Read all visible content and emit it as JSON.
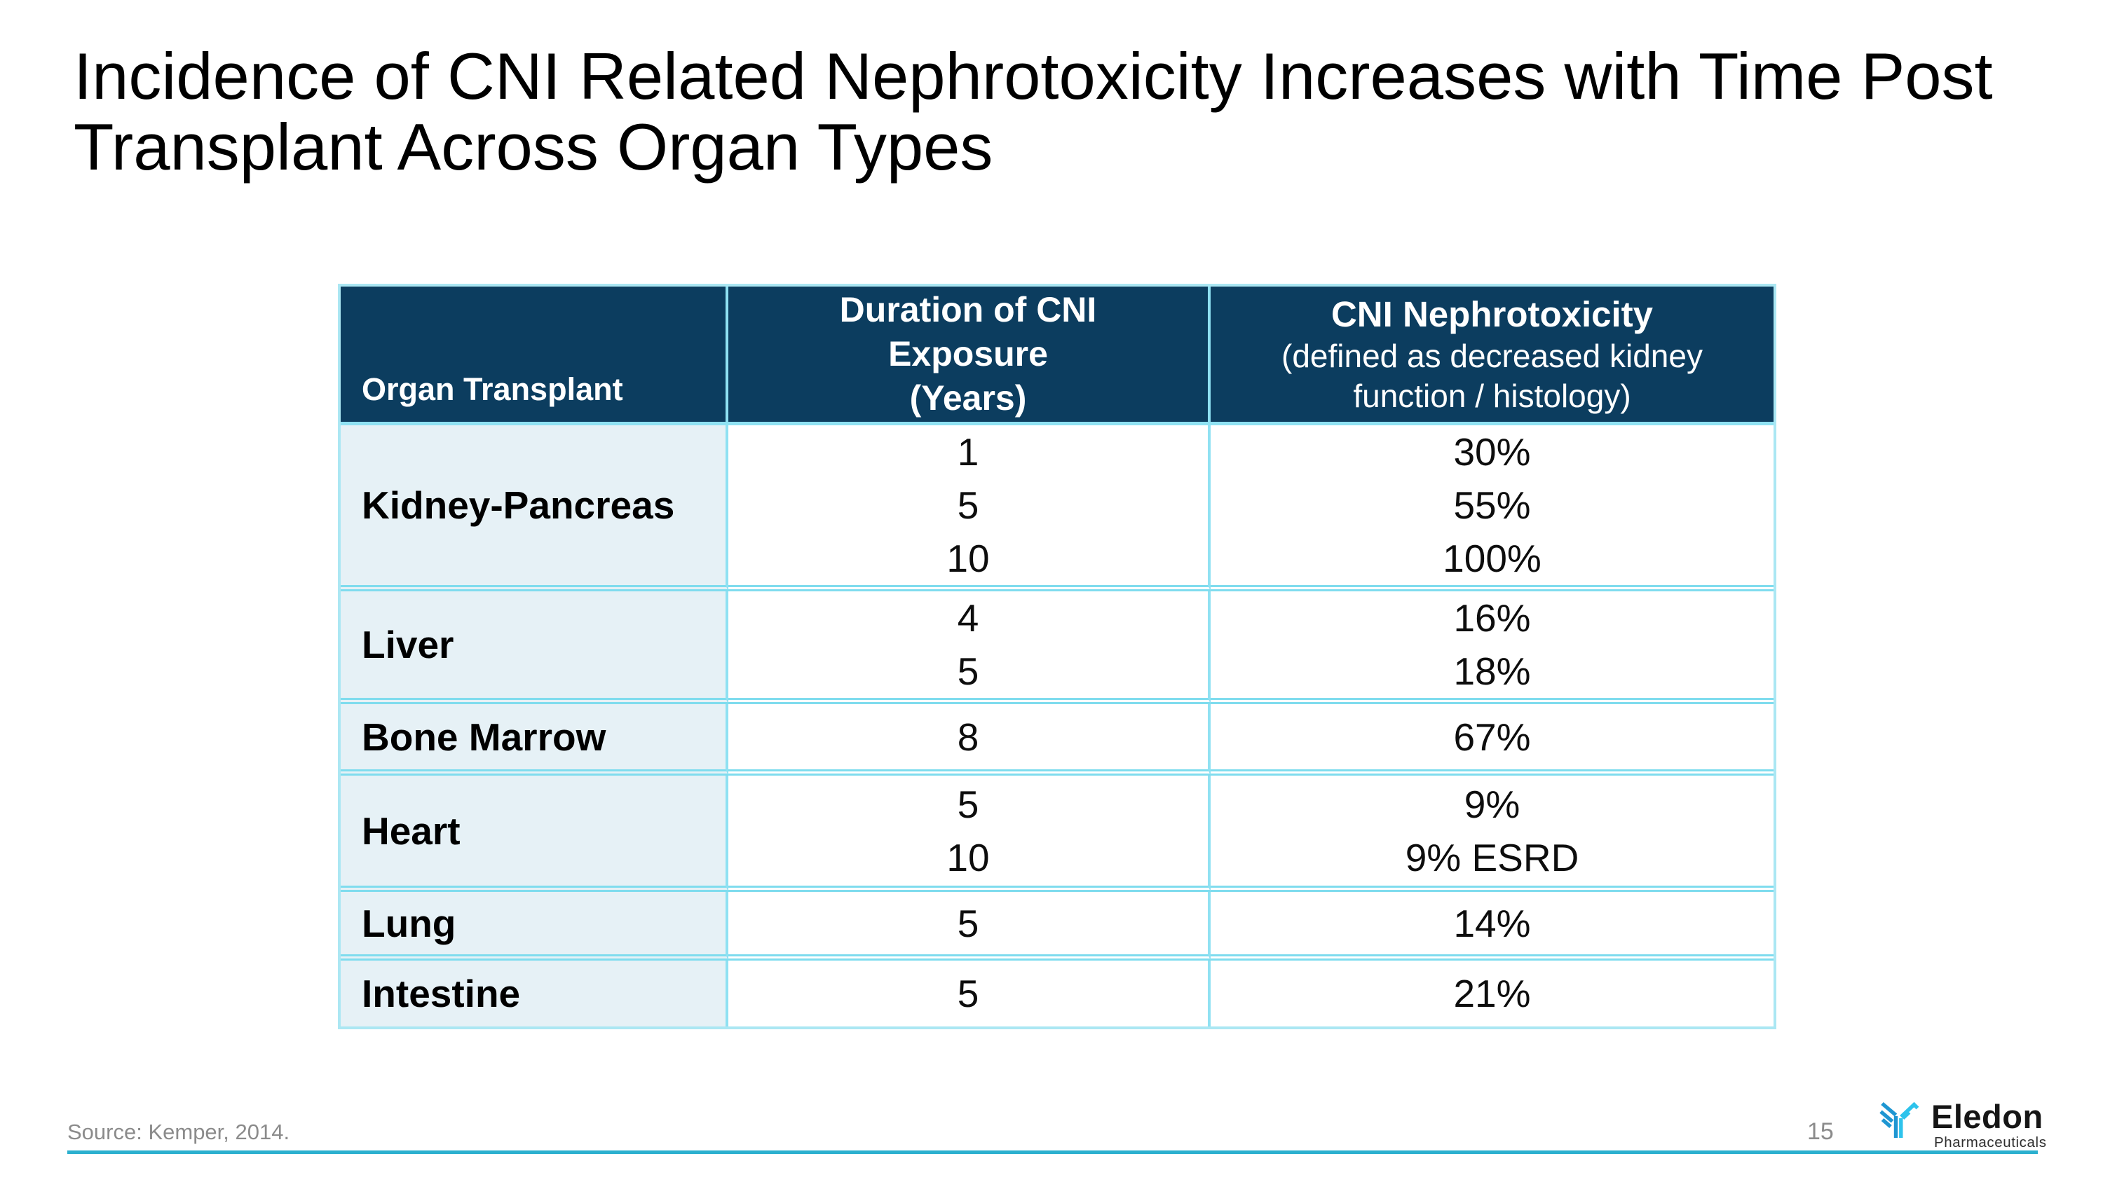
{
  "slide": {
    "title_lines": [
      "Incidence of CNI Related Nephrotoxicity Increases with Time Post",
      "Transplant Across Organ Types"
    ],
    "footer": {
      "source": "Source: Kemper, 2014.",
      "page_number": "15",
      "logo_name": "Eledon",
      "logo_subtitle": "Pharmaceuticals"
    },
    "colors": {
      "header_bg": "#0c3d5f",
      "organ_col_bg": "#e6f1f6",
      "border_cyan": "#8fe1f2",
      "separator_cyan": "#7fdcee",
      "outer_border": "#abe7f3",
      "rule_teal": "#2bb0cf",
      "logo_blue": "#1e96d2",
      "logo_cyan": "#2dc3ec",
      "source_gray": "#8b8b8b"
    }
  },
  "table": {
    "header": {
      "organ_label": "Organ Transplant",
      "duration_lines": [
        "Duration of CNI",
        "Exposure",
        "(Years)"
      ],
      "toxicity_title": "CNI Nephrotoxicity",
      "toxicity_sub_lines": [
        "(defined as decreased kidney",
        "function / histology)"
      ]
    },
    "rows": [
      {
        "organ": "Kidney-Pancreas",
        "durations": [
          "1",
          "5",
          "10"
        ],
        "toxicity": [
          "30%",
          "55%",
          "100%"
        ]
      },
      {
        "organ": "Liver",
        "durations": [
          "4",
          "5"
        ],
        "toxicity": [
          "16%",
          "18%"
        ]
      },
      {
        "organ": "Bone Marrow",
        "durations": [
          "8"
        ],
        "toxicity": [
          "67%"
        ]
      },
      {
        "organ": "Heart",
        "durations": [
          "5",
          "10"
        ],
        "toxicity": [
          "9%",
          "9% ESRD"
        ]
      },
      {
        "organ": "Lung",
        "durations": [
          "5"
        ],
        "toxicity": [
          "14%"
        ]
      },
      {
        "organ": "Intestine",
        "durations": [
          "5"
        ],
        "toxicity": [
          "21%"
        ]
      }
    ]
  }
}
